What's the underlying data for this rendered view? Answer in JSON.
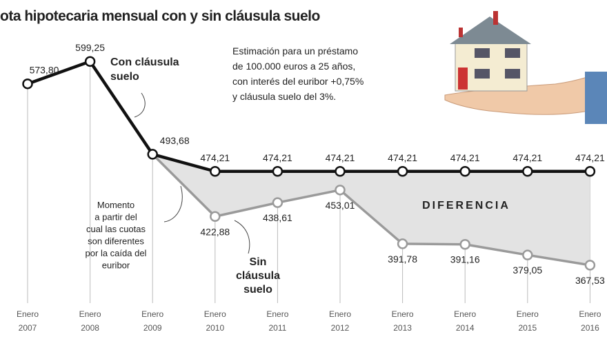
{
  "chart_data": {
    "type": "line",
    "title": "ota hipotecaria mensual con y sin cláusula suelo",
    "categories": [
      "Enero 2007",
      "Enero 2008",
      "Enero 2009",
      "Enero 2010",
      "Enero 2011",
      "Enero 2012",
      "Enero 2013",
      "Enero 2014",
      "Enero 2015",
      "Enero 2016"
    ],
    "series": [
      {
        "name": "Con cláusula suelo",
        "color": "#111111",
        "values": [
          573.8,
          599.25,
          493.68,
          474.21,
          474.21,
          474.21,
          474.21,
          474.21,
          474.21,
          474.21
        ],
        "value_labels": [
          "573,80",
          "599,25",
          "493,68",
          "474,21",
          "474,21",
          "474,21",
          "474,21",
          "474,21",
          "474,21",
          "474,21"
        ]
      },
      {
        "name": "Sin cláusula suelo",
        "color": "#9a9a9a",
        "values": [
          null,
          null,
          493.68,
          422.88,
          438.61,
          453.01,
          391.78,
          391.16,
          379.05,
          367.53
        ],
        "value_labels": [
          null,
          null,
          null,
          "422,88",
          "438,61",
          "453,01",
          "391,78",
          "391,16",
          "379,05",
          "367,53"
        ]
      }
    ],
    "ylim": [
      340,
      630
    ],
    "annotations": {
      "con_label": [
        "Con cláusula",
        "suelo"
      ],
      "sin_label": [
        "Sin",
        "cláusula",
        "suelo"
      ],
      "difference": "DIFERENCIA",
      "note": [
        "Estimación para un préstamo",
        "de 100.000 euros a 25 años,",
        "con interés del euribor +0,75%",
        "y cláusula suelo del 3%."
      ],
      "moment": [
        "Momento",
        "a partir del",
        "cual las cuotas",
        "son diferentes",
        "por la caída del",
        "euribor"
      ]
    }
  }
}
